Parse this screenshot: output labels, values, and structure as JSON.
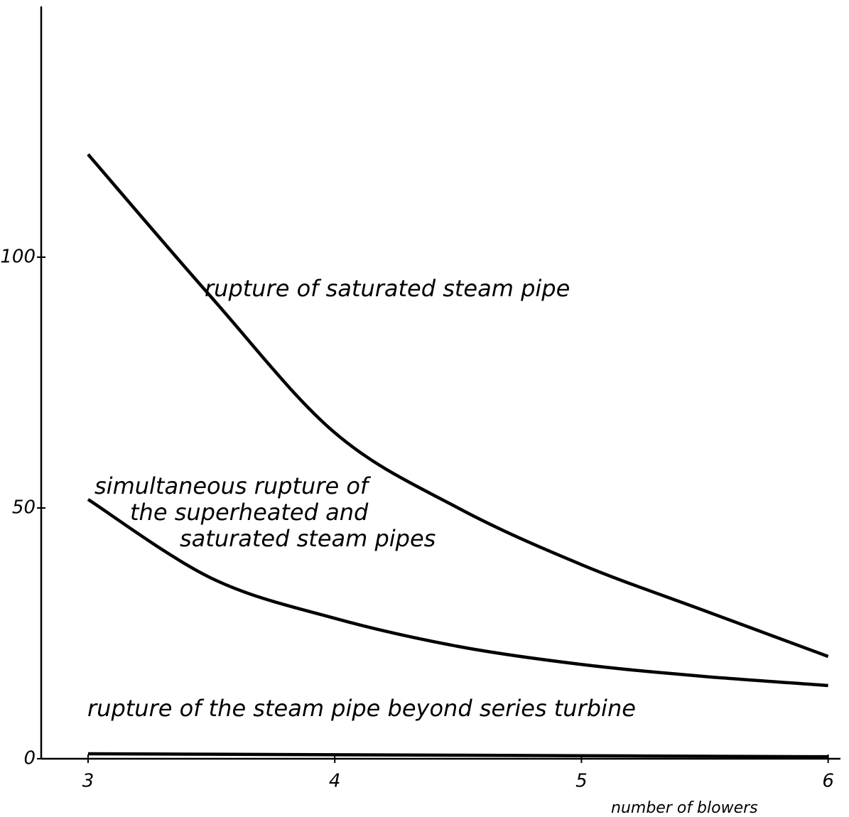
{
  "chart_data": {
    "type": "line",
    "x_label": "number of blowers",
    "x": [
      3,
      3.5,
      4,
      4.5,
      5,
      5.5,
      6
    ],
    "series": [
      {
        "color": "#000000",
        "values": [
          120.5,
          92,
          65,
          50,
          38.7,
          29.5,
          20.4
        ]
      },
      {
        "color": "#000000",
        "values": [
          51.7,
          36,
          28,
          22.4,
          18.8,
          16.4,
          14.6
        ]
      },
      {
        "color": "#000000",
        "values": [
          1,
          0.9,
          0.8,
          0.7,
          0.6,
          0.5,
          0.4
        ]
      }
    ],
    "annotations": [
      [
        "rupture of  saturated  steam  pipe"
      ],
      [
        "simultaneous rupture of",
        "the superheated and",
        "saturated steam pipes"
      ],
      [
        "rupture of the steam pipe beyond  series  turbine"
      ]
    ],
    "xlim": [
      2.81,
      6.05
    ],
    "ylim": [
      0,
      150
    ],
    "xticks": [
      3,
      4,
      5,
      6
    ],
    "yticks": [
      0,
      50,
      100
    ]
  }
}
